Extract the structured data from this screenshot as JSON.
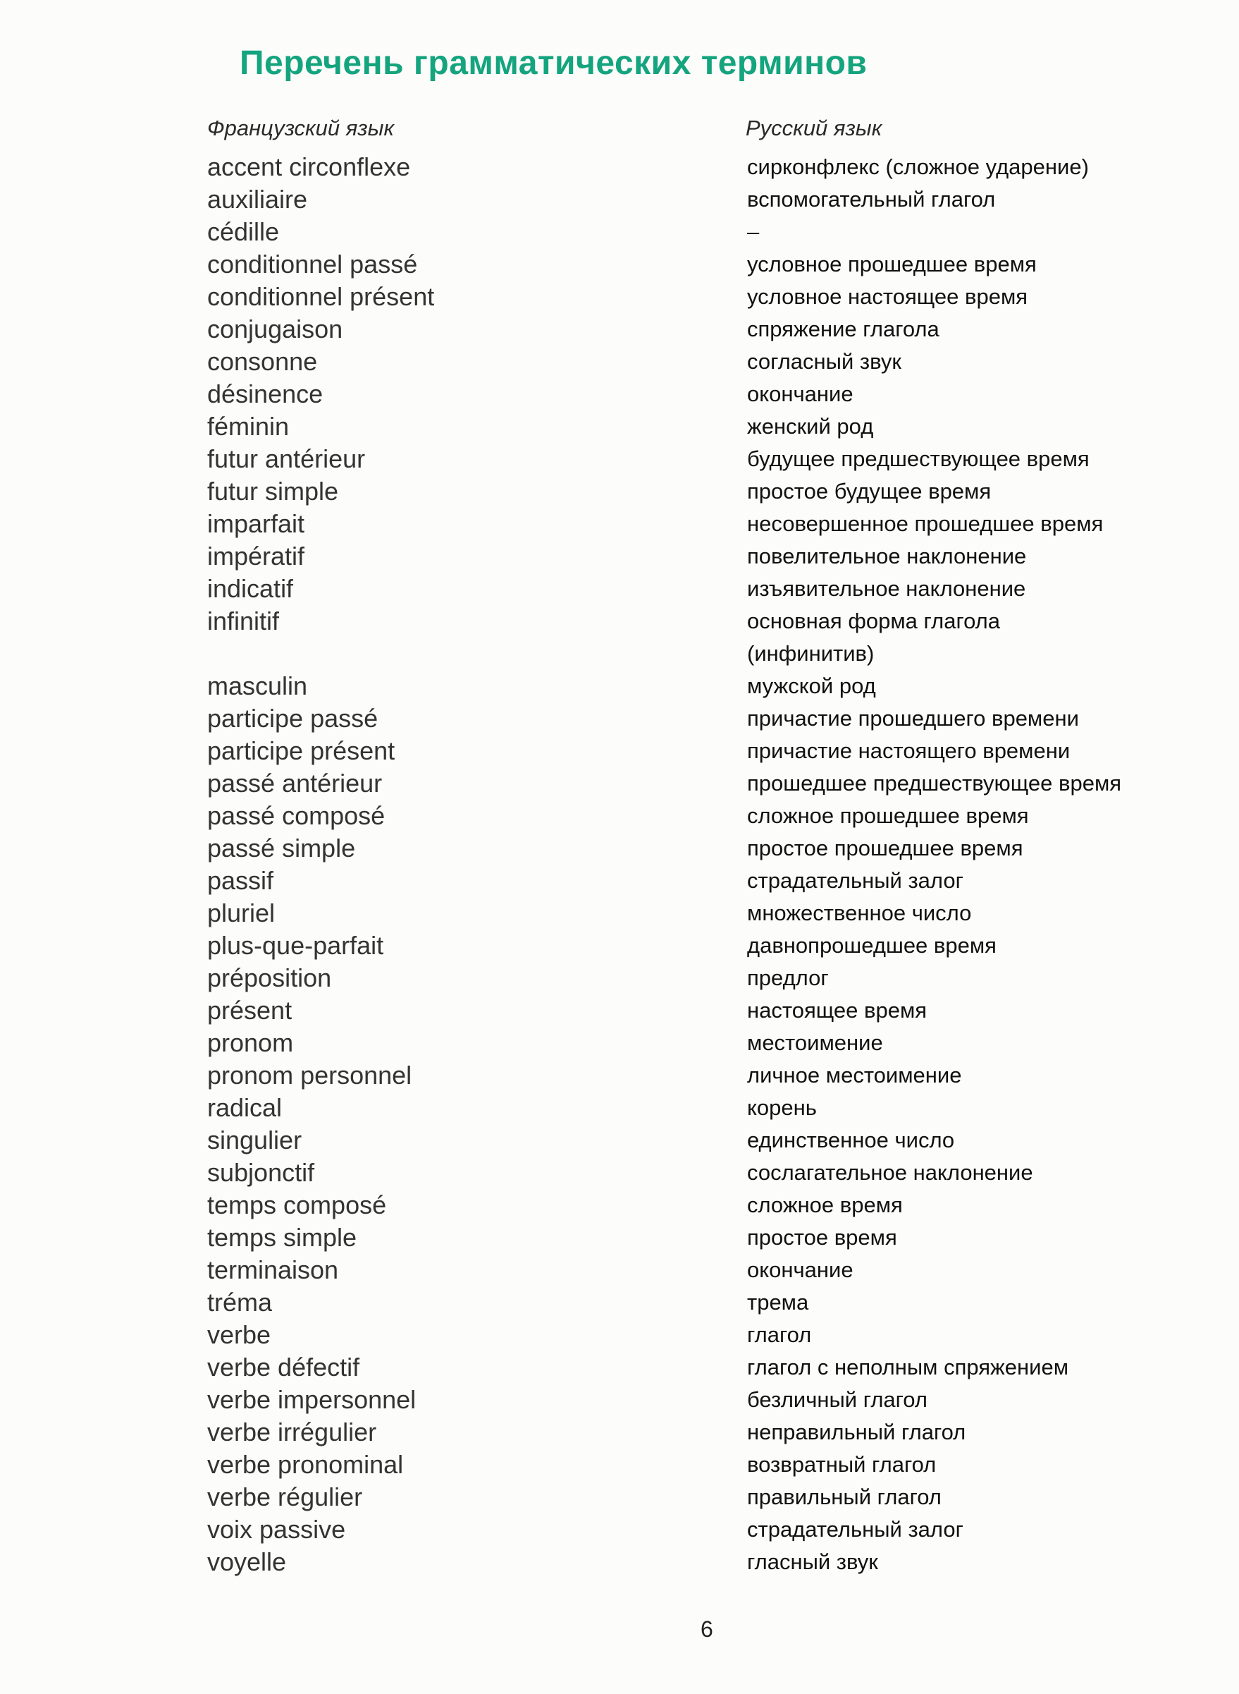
{
  "title": "Перечень грамматических терминов",
  "columns": {
    "french": "Французский язык",
    "russian": "Русский язык"
  },
  "terms": [
    {
      "fr": "accent circonflexe",
      "ru": "сирконфлекс (сложное ударение)"
    },
    {
      "fr": "auxiliaire",
      "ru": "вспомогательный глагол"
    },
    {
      "fr": "cédille",
      "ru": "–"
    },
    {
      "fr": "conditionnel passé",
      "ru": "условное прошедшее время"
    },
    {
      "fr": "conditionnel présent",
      "ru": "условное настоящее время"
    },
    {
      "fr": "conjugaison",
      "ru": "спряжение глагола"
    },
    {
      "fr": "consonne",
      "ru": "согласный звук"
    },
    {
      "fr": "désinence",
      "ru": "окончание"
    },
    {
      "fr": "féminin",
      "ru": "женский род"
    },
    {
      "fr": "futur antérieur",
      "ru": "будущее предшествующее время"
    },
    {
      "fr": "futur simple",
      "ru": "простое будущее время"
    },
    {
      "fr": "imparfait",
      "ru": "несовершенное прошедшее время"
    },
    {
      "fr": "impératif",
      "ru": "повелительное наклонение"
    },
    {
      "fr": "indicatif",
      "ru": "изъявительное наклонение"
    },
    {
      "fr": "infinitif",
      "ru": "основная форма глагола\n(инфинитив)"
    },
    {
      "fr": "masculin",
      "ru": "мужской род"
    },
    {
      "fr": "participe passé",
      "ru": "причастие прошедшего времени"
    },
    {
      "fr": "participe présent",
      "ru": "причастие настоящего времени"
    },
    {
      "fr": "passé antérieur",
      "ru": "прошедшее предшествующее время"
    },
    {
      "fr": "passé composé",
      "ru": "сложное прошедшее время"
    },
    {
      "fr": "passé simple",
      "ru": "простое прошедшее время"
    },
    {
      "fr": "passif",
      "ru": "страдательный залог"
    },
    {
      "fr": "pluriel",
      "ru": "множественное число"
    },
    {
      "fr": "plus-que-parfait",
      "ru": "давнопрошедшее время"
    },
    {
      "fr": "préposition",
      "ru": "предлог"
    },
    {
      "fr": "présent",
      "ru": "настоящее время"
    },
    {
      "fr": "pronom",
      "ru": "местоимение"
    },
    {
      "fr": "pronom personnel",
      "ru": "личное местоимение"
    },
    {
      "fr": "radical",
      "ru": "корень"
    },
    {
      "fr": "singulier",
      "ru": "единственное число"
    },
    {
      "fr": "subjonctif",
      "ru": "сослагательное наклонение"
    },
    {
      "fr": "temps composé",
      "ru": "сложное время"
    },
    {
      "fr": "temps simple",
      "ru": "простое время"
    },
    {
      "fr": "terminaison",
      "ru": "окончание"
    },
    {
      "fr": "tréma",
      "ru": "трема"
    },
    {
      "fr": "verbe",
      "ru": "глагол"
    },
    {
      "fr": "verbe défectif",
      "ru": "глагол с неполным спряжением"
    },
    {
      "fr": "verbe impersonnel",
      "ru": "безличный глагол"
    },
    {
      "fr": "verbe irrégulier",
      "ru": "неправильный глагол"
    },
    {
      "fr": "verbe pronominal",
      "ru": "возвратный глагол"
    },
    {
      "fr": "verbe régulier",
      "ru": "правильный глагол"
    },
    {
      "fr": "voix passive",
      "ru": "страдательный залог"
    },
    {
      "fr": "voyelle",
      "ru": "гласный звук"
    }
  ],
  "page_number": "6",
  "colors": {
    "title": "#14a47e"
  }
}
